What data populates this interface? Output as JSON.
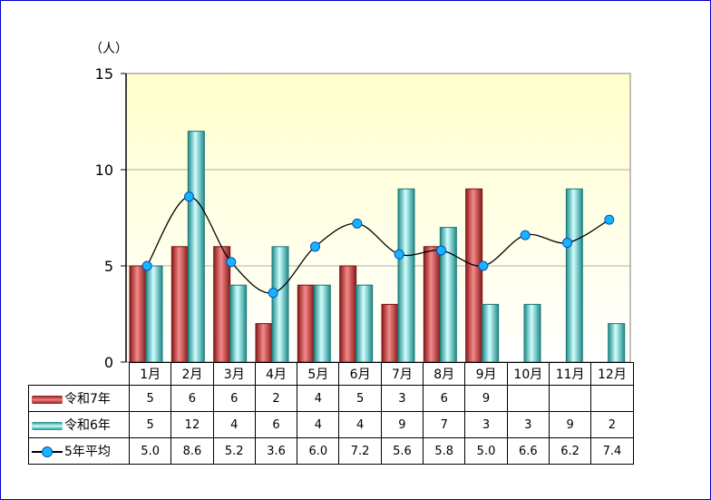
{
  "chart_data": {
    "type": "bar",
    "unit_label": "（人）",
    "categories": [
      "1月",
      "2月",
      "3月",
      "4月",
      "5月",
      "6月",
      "7月",
      "8月",
      "9月",
      "10月",
      "11月",
      "12月"
    ],
    "ylim": [
      0,
      15
    ],
    "yticks": [
      "0",
      "5",
      "10",
      "15"
    ],
    "grid": true,
    "series": [
      {
        "name": "令和7年",
        "kind": "bar",
        "color": "#d05050",
        "values": [
          5,
          6,
          6,
          2,
          4,
          5,
          3,
          6,
          9,
          null,
          null,
          null
        ],
        "labels": [
          "5",
          "6",
          "6",
          "2",
          "4",
          "5",
          "3",
          "6",
          "9",
          "",
          "",
          ""
        ]
      },
      {
        "name": "令和6年",
        "kind": "bar",
        "color": "#40b0b0",
        "values": [
          5,
          12,
          4,
          6,
          4,
          4,
          9,
          7,
          3,
          3,
          9,
          2
        ],
        "labels": [
          "5",
          "12",
          "4",
          "6",
          "4",
          "4",
          "9",
          "7",
          "3",
          "3",
          "9",
          "2"
        ]
      },
      {
        "name": "5年平均",
        "kind": "line",
        "color": "#19b4ff",
        "values": [
          5.0,
          8.6,
          5.2,
          3.6,
          6.0,
          7.2,
          5.6,
          5.8,
          5.0,
          6.6,
          6.2,
          7.4
        ],
        "labels": [
          "5.0",
          "8.6",
          "5.2",
          "3.6",
          "6.0",
          "7.2",
          "5.6",
          "5.8",
          "5.0",
          "6.6",
          "6.2",
          "7.4"
        ]
      }
    ]
  }
}
